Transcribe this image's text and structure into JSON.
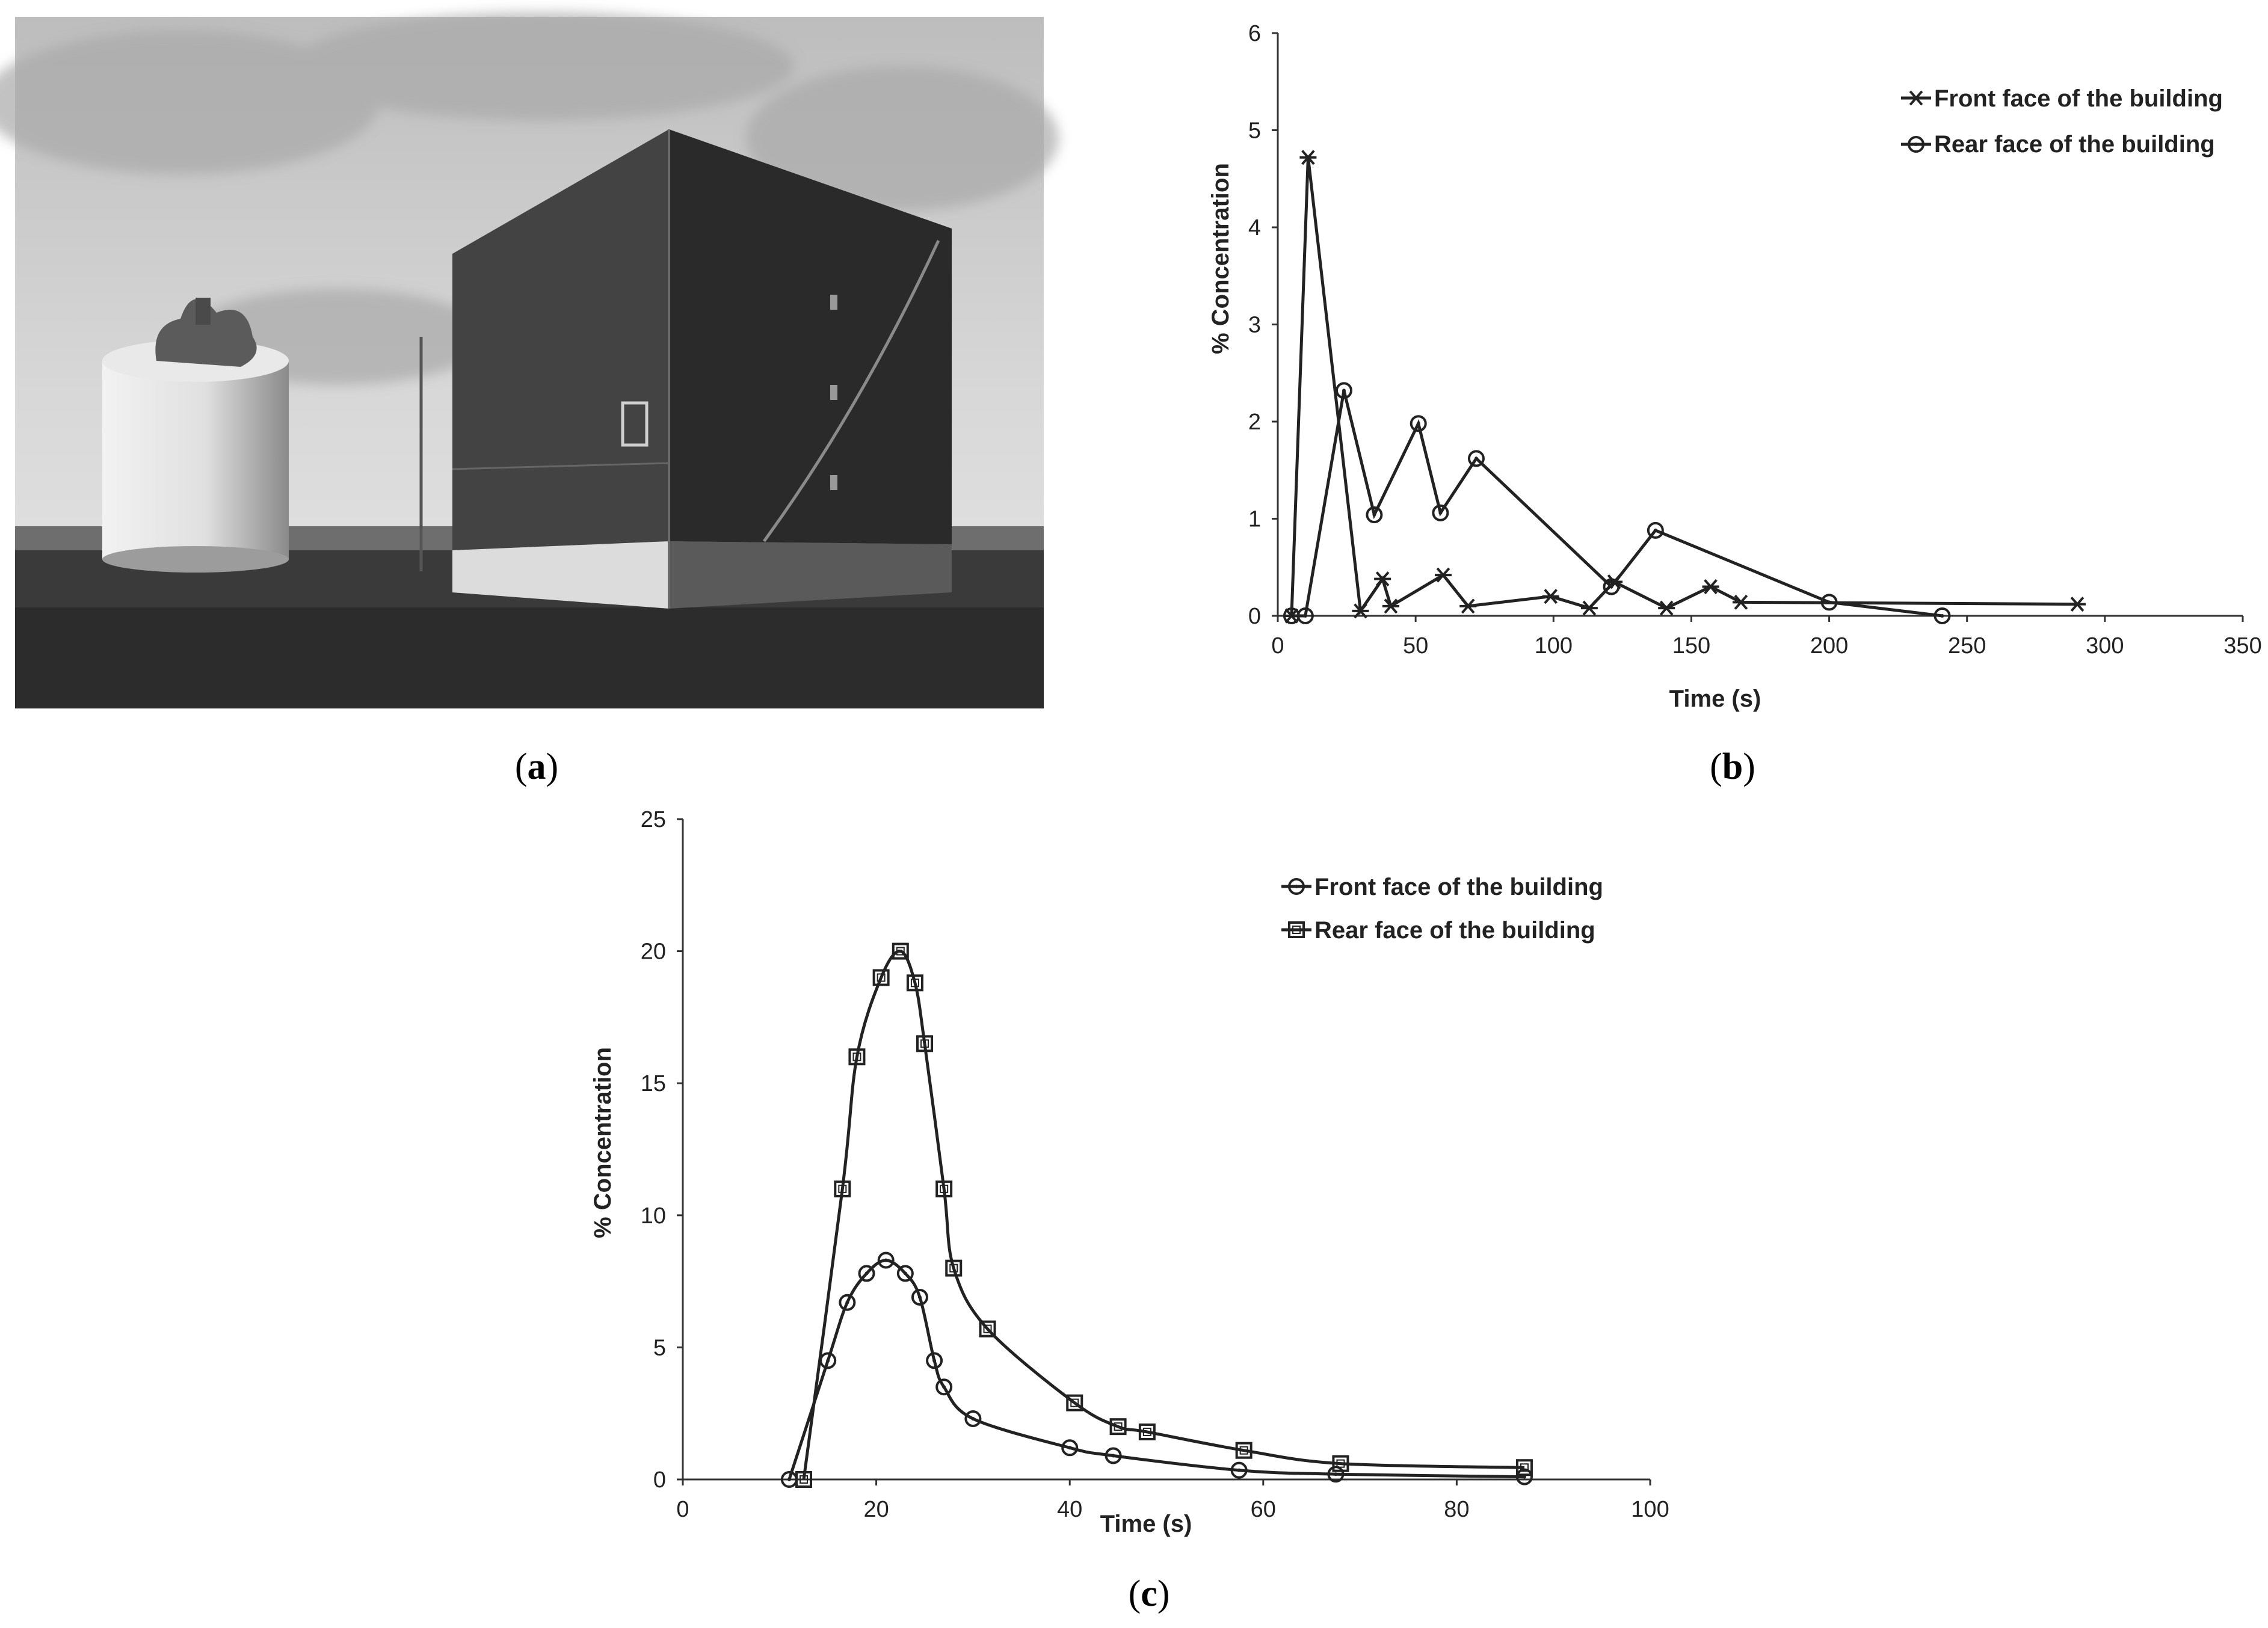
{
  "panels": {
    "a": {
      "label_open": "(",
      "letter": "a",
      "label_close": ")"
    },
    "b": {
      "label_open": "(",
      "letter": "b",
      "label_close": ")"
    },
    "c": {
      "label_open": "(",
      "letter": "c",
      "label_close": ")"
    }
  },
  "photo": {
    "subject": "storage-tank-and-building-photo"
  },
  "chart_data": [
    {
      "id": "b",
      "type": "line",
      "title": "",
      "xlabel": "Time (s)",
      "ylabel": "% Concentration",
      "xlim": [
        0,
        350
      ],
      "ylim": [
        0,
        6
      ],
      "xticks": [
        0,
        50,
        100,
        150,
        200,
        250,
        300,
        350
      ],
      "yticks": [
        0,
        1,
        2,
        3,
        4,
        5,
        6
      ],
      "grid": false,
      "legend": "top-right",
      "series": [
        {
          "name": "Front face of the building",
          "marker": "asterisk",
          "x": [
            5,
            11,
            30,
            38,
            41,
            60,
            69,
            99,
            113,
            122,
            141,
            157,
            168,
            290
          ],
          "y": [
            0,
            4.72,
            0.05,
            0.38,
            0.1,
            0.42,
            0.1,
            0.2,
            0.08,
            0.35,
            0.08,
            0.3,
            0.14,
            0.12
          ]
        },
        {
          "name": "Rear face of the building",
          "marker": "circle",
          "x": [
            5,
            10,
            24,
            35,
            51,
            59,
            72,
            121,
            137,
            200,
            241
          ],
          "y": [
            0,
            0,
            2.32,
            1.04,
            1.98,
            1.06,
            1.62,
            0.3,
            0.88,
            0.14,
            0
          ]
        }
      ]
    },
    {
      "id": "c",
      "type": "line",
      "title": "",
      "xlabel": "Time (s)",
      "ylabel": "% Concentration",
      "xlim": [
        0,
        100
      ],
      "ylim": [
        0,
        25
      ],
      "xticks": [
        0,
        20,
        40,
        60,
        80,
        100
      ],
      "yticks": [
        0,
        5,
        10,
        15,
        20,
        25
      ],
      "grid": false,
      "legend": "top-right",
      "series": [
        {
          "name": "Front face of the building",
          "marker": "circle",
          "x": [
            11,
            15,
            17,
            19,
            21,
            23,
            24.5,
            26,
            27,
            30,
            40,
            44.5,
            57.5,
            67.5,
            87
          ],
          "y": [
            0,
            4.5,
            6.7,
            7.8,
            8.3,
            7.8,
            6.9,
            4.5,
            3.5,
            2.3,
            1.2,
            0.9,
            0.35,
            0.2,
            0.1
          ]
        },
        {
          "name": "Rear face of the building",
          "marker": "square",
          "x": [
            12.5,
            16.5,
            18,
            20.5,
            22.5,
            24,
            25,
            27,
            28,
            31.5,
            40.5,
            45,
            48,
            58,
            68,
            87
          ],
          "y": [
            0,
            11,
            16,
            19,
            20,
            18.8,
            16.5,
            11,
            8,
            5.7,
            2.9,
            2,
            1.8,
            1.1,
            0.6,
            0.45
          ]
        }
      ]
    }
  ]
}
